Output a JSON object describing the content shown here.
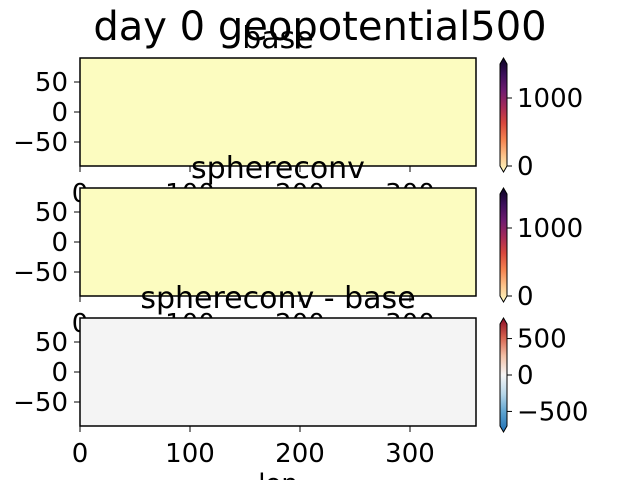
{
  "figure": {
    "title": "day 0 geopotential500",
    "bottom_label": "lon"
  },
  "colors": {
    "panel_fill_abs": "#fcfcc0",
    "panel_fill_diff": "#f4f4f4",
    "cmap_abs": [
      "#fdfcc4",
      "#fdc38a",
      "#f5824f",
      "#d9483d",
      "#a52a59",
      "#6e1b6f",
      "#3b0f5a",
      "#0b0424"
    ],
    "cmap_diff": [
      "#1f6fb3",
      "#5aa1cf",
      "#b7d7ea",
      "#f6f6f6",
      "#f3c0a6",
      "#d6604d",
      "#8a0b25"
    ]
  },
  "chart_data": [
    {
      "type": "heatmap",
      "title": "base",
      "xlim": [
        0,
        360
      ],
      "ylim": [
        -90,
        90
      ],
      "xticks": [
        0,
        100,
        200,
        300
      ],
      "yticks": [
        50,
        0,
        -50
      ],
      "x_tick_labels": [
        "0",
        "100",
        "200",
        "300"
      ],
      "y_tick_labels": [
        "50",
        "0",
        "−50"
      ],
      "field": "uniform",
      "colorbar": {
        "range": [
          0,
          1500
        ],
        "ticks": [
          0,
          1000
        ],
        "tick_labels": [
          "0",
          "1000"
        ],
        "cmap": "abs"
      }
    },
    {
      "type": "heatmap",
      "title": "sphereconv",
      "xlim": [
        0,
        360
      ],
      "ylim": [
        -90,
        90
      ],
      "xticks": [
        0,
        100,
        200,
        300
      ],
      "yticks": [
        50,
        0,
        -50
      ],
      "x_tick_labels": [
        "0",
        "100",
        "200",
        "300"
      ],
      "y_tick_labels": [
        "50",
        "0",
        "−50"
      ],
      "field": "uniform",
      "colorbar": {
        "range": [
          0,
          1500
        ],
        "ticks": [
          0,
          1000
        ],
        "tick_labels": [
          "0",
          "1000"
        ],
        "cmap": "abs"
      }
    },
    {
      "type": "heatmap",
      "title": "sphereconv - base",
      "xlim": [
        0,
        360
      ],
      "ylim": [
        -90,
        90
      ],
      "xticks": [
        0,
        100,
        200,
        300
      ],
      "yticks": [
        50,
        0,
        -50
      ],
      "x_tick_labels": [
        "0",
        "100",
        "200",
        "300"
      ],
      "y_tick_labels": [
        "50",
        "0",
        "−50"
      ],
      "field": "uniform",
      "colorbar": {
        "range": [
          -700,
          700
        ],
        "ticks": [
          500,
          0,
          -500
        ],
        "tick_labels": [
          "500",
          "0",
          "−500"
        ],
        "cmap": "diff"
      }
    }
  ]
}
